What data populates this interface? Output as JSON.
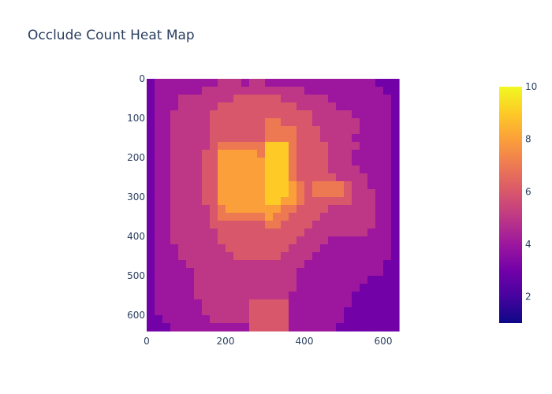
{
  "chart_data": {
    "type": "heatmap",
    "title": "Occlude Count Heat Map",
    "xlabel": "",
    "ylabel": "",
    "xlim": [
      0,
      640
    ],
    "ylim": [
      640,
      0
    ],
    "x_ticks": [
      0,
      200,
      400,
      600
    ],
    "y_ticks": [
      0,
      100,
      200,
      300,
      400,
      500,
      600
    ],
    "x_tick_labels": [
      "0",
      "200",
      "400",
      "600"
    ],
    "y_tick_labels": [
      "0",
      "100",
      "200",
      "300",
      "400",
      "500",
      "600"
    ],
    "colorscale": "plasma",
    "zmin": 1,
    "zmax": 10,
    "colorbar_ticks": [
      2,
      4,
      6,
      8,
      10
    ],
    "colorbar_tick_labels": [
      "2",
      "4",
      "6",
      "8",
      "10"
    ],
    "z_grid_cell_size": 20,
    "z_grid_description": "Approximate occlusion count per 20x20 region of a 640x640 image, read from color; edges ~3-4, center ~8-10",
    "z": [
      [
        3,
        4,
        4,
        4,
        4,
        4,
        4,
        4,
        4,
        5,
        5,
        5,
        4,
        5,
        5,
        4,
        4,
        4,
        4,
        4,
        4,
        4,
        4,
        4,
        4,
        4,
        4,
        4,
        4,
        3,
        3,
        3
      ],
      [
        3,
        4,
        4,
        4,
        4,
        4,
        4,
        5,
        5,
        5,
        5,
        5,
        5,
        5,
        5,
        5,
        5,
        5,
        5,
        5,
        4,
        4,
        4,
        4,
        4,
        4,
        4,
        4,
        4,
        4,
        3,
        3
      ],
      [
        3,
        4,
        4,
        4,
        5,
        5,
        5,
        5,
        5,
        5,
        5,
        6,
        6,
        6,
        6,
        6,
        6,
        5,
        5,
        5,
        5,
        5,
        5,
        4,
        4,
        4,
        4,
        4,
        4,
        4,
        4,
        3
      ],
      [
        3,
        4,
        4,
        4,
        5,
        5,
        5,
        5,
        5,
        6,
        6,
        6,
        6,
        6,
        6,
        6,
        6,
        6,
        6,
        5,
        5,
        5,
        5,
        5,
        4,
        4,
        4,
        4,
        4,
        4,
        4,
        3
      ],
      [
        3,
        4,
        4,
        5,
        5,
        5,
        5,
        5,
        6,
        6,
        6,
        6,
        6,
        6,
        6,
        6,
        6,
        6,
        6,
        6,
        6,
        5,
        5,
        5,
        5,
        5,
        4,
        4,
        4,
        4,
        4,
        3
      ],
      [
        3,
        4,
        4,
        5,
        5,
        5,
        5,
        5,
        6,
        6,
        6,
        6,
        6,
        6,
        6,
        7,
        7,
        6,
        6,
        6,
        6,
        5,
        5,
        5,
        5,
        5,
        5,
        4,
        4,
        4,
        4,
        3
      ],
      [
        3,
        4,
        4,
        5,
        5,
        5,
        5,
        5,
        6,
        6,
        6,
        6,
        6,
        6,
        6,
        7,
        7,
        7,
        7,
        6,
        6,
        6,
        5,
        5,
        5,
        5,
        5,
        4,
        4,
        4,
        4,
        3
      ],
      [
        3,
        4,
        4,
        5,
        5,
        5,
        5,
        5,
        6,
        6,
        6,
        6,
        6,
        6,
        6,
        7,
        7,
        7,
        7,
        6,
        6,
        6,
        5,
        5,
        5,
        5,
        4,
        4,
        4,
        4,
        4,
        3
      ],
      [
        3,
        4,
        4,
        5,
        5,
        5,
        5,
        5,
        6,
        7,
        7,
        7,
        7,
        7,
        7,
        9,
        9,
        9,
        7,
        6,
        6,
        6,
        6,
        5,
        5,
        5,
        5,
        4,
        4,
        4,
        4,
        3
      ],
      [
        3,
        4,
        4,
        5,
        5,
        5,
        5,
        6,
        6,
        8,
        8,
        8,
        8,
        8,
        7,
        9,
        9,
        9,
        7,
        6,
        6,
        6,
        6,
        5,
        5,
        5,
        4,
        4,
        4,
        4,
        4,
        3
      ],
      [
        3,
        4,
        4,
        5,
        5,
        5,
        5,
        6,
        6,
        8,
        8,
        8,
        8,
        8,
        8,
        9,
        9,
        9,
        7,
        6,
        6,
        6,
        6,
        5,
        5,
        5,
        4,
        4,
        4,
        4,
        4,
        3
      ],
      [
        3,
        4,
        4,
        5,
        5,
        5,
        5,
        6,
        6,
        8,
        8,
        8,
        8,
        8,
        8,
        9,
        9,
        9,
        7,
        6,
        6,
        6,
        6,
        5,
        5,
        5,
        5,
        4,
        4,
        4,
        4,
        3
      ],
      [
        3,
        4,
        4,
        5,
        5,
        5,
        5,
        6,
        6,
        8,
        8,
        8,
        8,
        8,
        8,
        9,
        9,
        9,
        7,
        6,
        6,
        6,
        6,
        6,
        5,
        5,
        5,
        5,
        4,
        4,
        4,
        3
      ],
      [
        3,
        4,
        4,
        5,
        5,
        5,
        5,
        6,
        6,
        8,
        8,
        8,
        8,
        8,
        8,
        9,
        9,
        9,
        8,
        7,
        6,
        7,
        7,
        7,
        7,
        6,
        5,
        5,
        4,
        4,
        4,
        3
      ],
      [
        3,
        4,
        4,
        5,
        5,
        5,
        5,
        6,
        6,
        8,
        8,
        8,
        8,
        8,
        8,
        9,
        9,
        9,
        8,
        7,
        6,
        7,
        7,
        7,
        7,
        6,
        5,
        5,
        5,
        4,
        4,
        3
      ],
      [
        3,
        4,
        4,
        5,
        5,
        5,
        5,
        6,
        6,
        8,
        8,
        8,
        8,
        8,
        8,
        9,
        9,
        8,
        8,
        7,
        6,
        6,
        6,
        6,
        6,
        6,
        5,
        5,
        5,
        4,
        4,
        3
      ],
      [
        3,
        4,
        4,
        5,
        5,
        5,
        5,
        5,
        6,
        7,
        8,
        8,
        8,
        8,
        8,
        8,
        8,
        7,
        7,
        6,
        6,
        6,
        6,
        5,
        5,
        5,
        5,
        5,
        5,
        4,
        4,
        3
      ],
      [
        3,
        4,
        4,
        5,
        5,
        5,
        5,
        5,
        6,
        7,
        7,
        7,
        7,
        7,
        7,
        8,
        7,
        7,
        6,
        6,
        6,
        6,
        5,
        5,
        5,
        5,
        5,
        5,
        5,
        4,
        4,
        3
      ],
      [
        3,
        4,
        4,
        5,
        5,
        5,
        5,
        5,
        6,
        6,
        6,
        6,
        6,
        6,
        6,
        7,
        7,
        6,
        6,
        6,
        6,
        5,
        5,
        5,
        5,
        5,
        5,
        5,
        5,
        4,
        4,
        3
      ],
      [
        3,
        4,
        4,
        5,
        5,
        5,
        5,
        5,
        5,
        6,
        6,
        6,
        6,
        6,
        6,
        6,
        6,
        6,
        6,
        6,
        5,
        5,
        5,
        5,
        5,
        5,
        5,
        5,
        4,
        4,
        4,
        3
      ],
      [
        3,
        4,
        4,
        5,
        5,
        5,
        5,
        5,
        5,
        6,
        6,
        6,
        6,
        6,
        6,
        6,
        6,
        6,
        6,
        5,
        5,
        5,
        5,
        4,
        4,
        4,
        4,
        4,
        4,
        4,
        4,
        3
      ],
      [
        3,
        4,
        4,
        4,
        5,
        5,
        5,
        5,
        5,
        5,
        6,
        6,
        6,
        6,
        6,
        6,
        6,
        6,
        5,
        5,
        5,
        5,
        4,
        4,
        4,
        4,
        4,
        4,
        4,
        4,
        4,
        3
      ],
      [
        3,
        4,
        4,
        4,
        5,
        5,
        5,
        5,
        5,
        5,
        5,
        6,
        6,
        6,
        6,
        6,
        6,
        5,
        5,
        5,
        5,
        4,
        4,
        4,
        4,
        4,
        4,
        4,
        4,
        4,
        4,
        3
      ],
      [
        3,
        4,
        4,
        4,
        4,
        5,
        5,
        5,
        5,
        5,
        5,
        5,
        5,
        5,
        5,
        5,
        5,
        5,
        5,
        5,
        4,
        4,
        4,
        4,
        4,
        4,
        4,
        4,
        4,
        4,
        3,
        3
      ],
      [
        3,
        4,
        4,
        4,
        4,
        4,
        5,
        5,
        5,
        5,
        5,
        5,
        5,
        5,
        5,
        5,
        5,
        5,
        5,
        4,
        4,
        4,
        4,
        4,
        4,
        4,
        4,
        4,
        4,
        4,
        3,
        3
      ],
      [
        3,
        4,
        4,
        4,
        4,
        4,
        5,
        5,
        5,
        5,
        5,
        5,
        5,
        5,
        5,
        5,
        5,
        5,
        5,
        4,
        4,
        4,
        4,
        4,
        4,
        4,
        4,
        4,
        3,
        3,
        3,
        3
      ],
      [
        3,
        4,
        4,
        4,
        4,
        4,
        5,
        5,
        5,
        5,
        5,
        5,
        5,
        5,
        5,
        5,
        5,
        5,
        5,
        4,
        4,
        4,
        4,
        4,
        4,
        4,
        4,
        3,
        3,
        3,
        3,
        3
      ],
      [
        3,
        4,
        4,
        4,
        4,
        4,
        5,
        5,
        5,
        5,
        5,
        5,
        5,
        5,
        5,
        5,
        5,
        5,
        4,
        4,
        4,
        4,
        4,
        4,
        4,
        4,
        3,
        3,
        3,
        3,
        3,
        3
      ],
      [
        3,
        4,
        4,
        4,
        4,
        4,
        4,
        5,
        5,
        5,
        5,
        5,
        5,
        6,
        6,
        6,
        6,
        6,
        4,
        4,
        4,
        4,
        4,
        4,
        4,
        4,
        3,
        3,
        3,
        3,
        3,
        3
      ],
      [
        3,
        4,
        4,
        4,
        4,
        4,
        4,
        5,
        5,
        5,
        5,
        5,
        5,
        6,
        6,
        6,
        6,
        6,
        4,
        4,
        4,
        4,
        4,
        4,
        4,
        3,
        3,
        3,
        3,
        3,
        3,
        3
      ],
      [
        3,
        3,
        4,
        4,
        4,
        4,
        4,
        4,
        5,
        5,
        5,
        5,
        5,
        6,
        6,
        6,
        6,
        6,
        4,
        4,
        4,
        4,
        4,
        4,
        4,
        3,
        3,
        3,
        3,
        3,
        3,
        3
      ],
      [
        3,
        3,
        3,
        4,
        4,
        4,
        4,
        4,
        4,
        4,
        4,
        4,
        4,
        6,
        6,
        6,
        6,
        6,
        4,
        4,
        4,
        4,
        4,
        4,
        3,
        3,
        3,
        3,
        3,
        3,
        3,
        3
      ]
    ]
  }
}
